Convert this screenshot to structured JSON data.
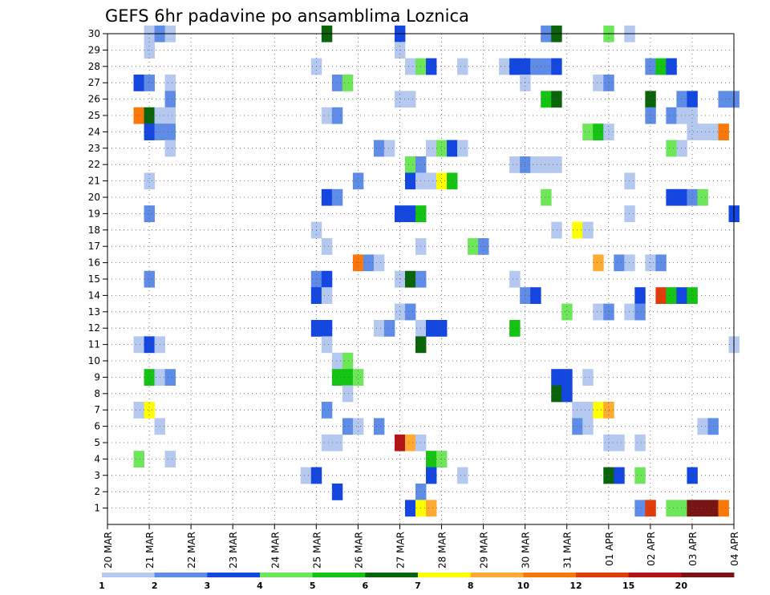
{
  "chart_data": {
    "type": "heatmap",
    "title": "GEFS 6hr padavine po ansamblima Loznica",
    "xlabel": "",
    "ylabel": "",
    "x_tick_labels": [
      "20 MAR",
      "21 MAR",
      "22 MAR",
      "23 MAR",
      "24 MAR",
      "25 MAR",
      "26 MAR",
      "27 MAR",
      "28 MAR",
      "29 MAR",
      "30 MAR",
      "31 MAR",
      "01 APR",
      "02 APR",
      "03 APR",
      "04 APR"
    ],
    "y_tick_labels": [
      "1",
      "2",
      "3",
      "4",
      "5",
      "6",
      "7",
      "8",
      "9",
      "10",
      "11",
      "12",
      "13",
      "14",
      "15",
      "16",
      "17",
      "18",
      "19",
      "20",
      "21",
      "22",
      "23",
      "24",
      "25",
      "26",
      "27",
      "28",
      "29",
      "30"
    ],
    "xlim_days": [
      0,
      15
    ],
    "ylim_members": [
      0,
      30
    ],
    "steps_per_day": 4,
    "grid": true,
    "colorbar": {
      "levels": [
        "1",
        "2",
        "3",
        "4",
        "5",
        "6",
        "7",
        "8",
        "10",
        "12",
        "15",
        "20"
      ],
      "colors": [
        "#b4c8f0",
        "#5f8ce6",
        "#1446e1",
        "#6ee65a",
        "#14c314",
        "#0a640a",
        "#ffff00",
        "#ffaa32",
        "#fa780a",
        "#e13c0a",
        "#b41414",
        "#781414"
      ]
    },
    "cells": [
      [
        0,
        "1.0",
        30
      ],
      [
        1,
        "1.25",
        30
      ],
      [
        0,
        "1.5",
        30
      ],
      [
        5,
        "5.25",
        30
      ],
      [
        2,
        "7.0",
        30
      ],
      [
        1,
        "10.5",
        30
      ],
      [
        5,
        "10.75",
        30
      ],
      [
        3,
        "12.0",
        30
      ],
      [
        0,
        "12.5",
        30
      ],
      [
        0,
        "1.0",
        29
      ],
      [
        0,
        "7.0",
        29
      ],
      [
        0,
        "5.0",
        28
      ],
      [
        0,
        "7.25",
        28
      ],
      [
        3,
        "7.5",
        28
      ],
      [
        2,
        "7.75",
        28
      ],
      [
        0,
        "8.5",
        28
      ],
      [
        0,
        "9.5",
        28
      ],
      [
        2,
        "9.75",
        28
      ],
      [
        2,
        "10.0",
        28
      ],
      [
        1,
        "10.25",
        28
      ],
      [
        1,
        "10.5",
        28
      ],
      [
        2,
        "10.75",
        28
      ],
      [
        1,
        "13.0",
        28
      ],
      [
        4,
        "13.25",
        28
      ],
      [
        2,
        "13.5",
        28
      ],
      [
        2,
        "0.75",
        27
      ],
      [
        1,
        "1.0",
        27
      ],
      [
        0,
        "1.5",
        27
      ],
      [
        1,
        "5.5",
        27
      ],
      [
        3,
        "5.75",
        27
      ],
      [
        0,
        "10.0",
        27
      ],
      [
        0,
        "11.75",
        27
      ],
      [
        1,
        "12.0",
        27
      ],
      [
        1,
        "1.5",
        26
      ],
      [
        0,
        "7.0",
        26
      ],
      [
        0,
        "7.25",
        26
      ],
      [
        4,
        "10.5",
        26
      ],
      [
        5,
        "10.75",
        26
      ],
      [
        5,
        "13.0",
        26
      ],
      [
        1,
        "13.75",
        26
      ],
      [
        2,
        "14.0",
        26
      ],
      [
        1,
        "14.75",
        26
      ],
      [
        1,
        "15.0",
        26
      ],
      [
        8,
        "0.75",
        25
      ],
      [
        5,
        "1.0",
        25
      ],
      [
        0,
        "1.25",
        25
      ],
      [
        0,
        "1.5",
        25
      ],
      [
        0,
        "5.25",
        25
      ],
      [
        1,
        "5.5",
        25
      ],
      [
        1,
        "13.0",
        25
      ],
      [
        1,
        "13.5",
        25
      ],
      [
        0,
        "13.75",
        25
      ],
      [
        0,
        "14.0",
        25
      ],
      [
        2,
        "1.0",
        24
      ],
      [
        1,
        "1.25",
        24
      ],
      [
        1,
        "1.5",
        24
      ],
      [
        3,
        "11.5",
        24
      ],
      [
        4,
        "11.75",
        24
      ],
      [
        0,
        "12.0",
        24
      ],
      [
        0,
        "14.0",
        24
      ],
      [
        0,
        "14.25",
        24
      ],
      [
        0,
        "14.5",
        24
      ],
      [
        8,
        "14.75",
        24
      ],
      [
        0,
        "1.5",
        23
      ],
      [
        1,
        "6.5",
        23
      ],
      [
        0,
        "6.75",
        23
      ],
      [
        0,
        "7.75",
        23
      ],
      [
        3,
        "8.0",
        23
      ],
      [
        2,
        "8.25",
        23
      ],
      [
        0,
        "8.5",
        23
      ],
      [
        3,
        "13.5",
        23
      ],
      [
        0,
        "13.75",
        23
      ],
      [
        3,
        "7.25",
        22
      ],
      [
        1,
        "7.5",
        22
      ],
      [
        0,
        "9.75",
        22
      ],
      [
        1,
        "10.0",
        22
      ],
      [
        0,
        "10.25",
        22
      ],
      [
        0,
        "10.5",
        22
      ],
      [
        0,
        "10.75",
        22
      ],
      [
        0,
        "1.0",
        21
      ],
      [
        1,
        "6.0",
        21
      ],
      [
        2,
        "7.25",
        21
      ],
      [
        0,
        "7.5",
        21
      ],
      [
        0,
        "7.75",
        21
      ],
      [
        6,
        "8.0",
        21
      ],
      [
        4,
        "8.25",
        21
      ],
      [
        0,
        "12.5",
        21
      ],
      [
        2,
        "5.25",
        20
      ],
      [
        1,
        "5.5",
        20
      ],
      [
        3,
        "10.5",
        20
      ],
      [
        2,
        "13.5",
        20
      ],
      [
        2,
        "13.75",
        20
      ],
      [
        1,
        "14.0",
        20
      ],
      [
        3,
        "14.25",
        20
      ],
      [
        1,
        "1.0",
        19
      ],
      [
        2,
        "7.0",
        19
      ],
      [
        2,
        "7.25",
        19
      ],
      [
        4,
        "7.5",
        19
      ],
      [
        0,
        "12.5",
        19
      ],
      [
        2,
        "15.0",
        19
      ],
      [
        0,
        "5.0",
        18
      ],
      [
        0,
        "10.75",
        18
      ],
      [
        6,
        "11.25",
        18
      ],
      [
        0,
        "11.5",
        18
      ],
      [
        0,
        "5.25",
        17
      ],
      [
        0,
        "7.5",
        17
      ],
      [
        3,
        "8.75",
        17
      ],
      [
        1,
        "9.0",
        17
      ],
      [
        8,
        "6.0",
        16
      ],
      [
        1,
        "6.25",
        16
      ],
      [
        0,
        "6.5",
        16
      ],
      [
        7,
        "11.75",
        16
      ],
      [
        1,
        "12.25",
        16
      ],
      [
        0,
        "12.5",
        16
      ],
      [
        0,
        "13.0",
        16
      ],
      [
        1,
        "13.25",
        16
      ],
      [
        1,
        "1.0",
        15
      ],
      [
        1,
        "5.0",
        15
      ],
      [
        2,
        "5.25",
        15
      ],
      [
        0,
        "7.0",
        15
      ],
      [
        5,
        "7.25",
        15
      ],
      [
        1,
        "7.5",
        15
      ],
      [
        0,
        "9.75",
        15
      ],
      [
        2,
        "5.0",
        14
      ],
      [
        0,
        "5.25",
        14
      ],
      [
        1,
        "10.0",
        14
      ],
      [
        2,
        "10.25",
        14
      ],
      [
        2,
        "12.75",
        14
      ],
      [
        9,
        "13.25",
        14
      ],
      [
        4,
        "13.5",
        14
      ],
      [
        2,
        "13.75",
        14
      ],
      [
        4,
        "14.0",
        14
      ],
      [
        0,
        "7.0",
        13
      ],
      [
        1,
        "7.25",
        13
      ],
      [
        3,
        "11.0",
        13
      ],
      [
        0,
        "11.75",
        13
      ],
      [
        1,
        "12.0",
        13
      ],
      [
        0,
        "12.5",
        13
      ],
      [
        1,
        "12.75",
        13
      ],
      [
        2,
        "5.0",
        12
      ],
      [
        2,
        "5.25",
        12
      ],
      [
        0,
        "6.5",
        12
      ],
      [
        1,
        "6.75",
        12
      ],
      [
        0,
        "7.5",
        12
      ],
      [
        2,
        "7.75",
        12
      ],
      [
        2,
        "8.0",
        12
      ],
      [
        4,
        "9.75",
        12
      ],
      [
        0,
        "0.75",
        11
      ],
      [
        2,
        "1.0",
        11
      ],
      [
        0,
        "1.25",
        11
      ],
      [
        0,
        "5.25",
        11
      ],
      [
        5,
        "7.5",
        11
      ],
      [
        0,
        "15.0",
        11
      ],
      [
        0,
        "5.5",
        10
      ],
      [
        3,
        "5.75",
        10
      ],
      [
        4,
        "1.0",
        9
      ],
      [
        0,
        "1.25",
        9
      ],
      [
        1,
        "1.5",
        9
      ],
      [
        4,
        "5.5",
        9
      ],
      [
        4,
        "5.75",
        9
      ],
      [
        3,
        "6.0",
        9
      ],
      [
        2,
        "10.75",
        9
      ],
      [
        2,
        "11.0",
        9
      ],
      [
        0,
        "11.5",
        9
      ],
      [
        0,
        "5.75",
        8
      ],
      [
        5,
        "10.75",
        8
      ],
      [
        2,
        "11.0",
        8
      ],
      [
        0,
        "0.75",
        7
      ],
      [
        6,
        "1.0",
        7
      ],
      [
        1,
        "5.25",
        7
      ],
      [
        0,
        "11.25",
        7
      ],
      [
        0,
        "11.5",
        7
      ],
      [
        6,
        "11.75",
        7
      ],
      [
        7,
        "12.0",
        7
      ],
      [
        0,
        "1.25",
        6
      ],
      [
        1,
        "5.75",
        6
      ],
      [
        0,
        "6.0",
        6
      ],
      [
        1,
        "6.5",
        6
      ],
      [
        1,
        "11.25",
        6
      ],
      [
        0,
        "11.5",
        6
      ],
      [
        0,
        "14.25",
        6
      ],
      [
        1,
        "14.5",
        6
      ],
      [
        0,
        "5.25",
        5
      ],
      [
        0,
        "5.5",
        5
      ],
      [
        10,
        "7.0",
        5
      ],
      [
        7,
        "7.25",
        5
      ],
      [
        0,
        "7.5",
        5
      ],
      [
        0,
        "12.0",
        5
      ],
      [
        0,
        "12.25",
        5
      ],
      [
        0,
        "12.75",
        5
      ],
      [
        3,
        "0.75",
        4
      ],
      [
        0,
        "1.5",
        4
      ],
      [
        4,
        "7.75",
        4
      ],
      [
        3,
        "8.0",
        4
      ],
      [
        0,
        "4.75",
        3
      ],
      [
        2,
        "5.0",
        3
      ],
      [
        2,
        "7.75",
        3
      ],
      [
        0,
        "8.5",
        3
      ],
      [
        5,
        "12.0",
        3
      ],
      [
        2,
        "12.25",
        3
      ],
      [
        3,
        "12.75",
        3
      ],
      [
        2,
        "14.0",
        3
      ],
      [
        2,
        "5.5",
        2
      ],
      [
        1,
        "7.5",
        2
      ],
      [
        2,
        "7.25",
        1
      ],
      [
        6,
        "7.5",
        1
      ],
      [
        7,
        "7.75",
        1
      ],
      [
        1,
        "12.75",
        1
      ],
      [
        9,
        "13.0",
        1
      ],
      [
        3,
        "13.5",
        1
      ],
      [
        3,
        "13.75",
        1
      ],
      [
        11,
        "14.0",
        1
      ],
      [
        11,
        "14.25",
        1
      ],
      [
        11,
        "14.5",
        1
      ],
      [
        8,
        "14.75",
        1
      ]
    ]
  }
}
